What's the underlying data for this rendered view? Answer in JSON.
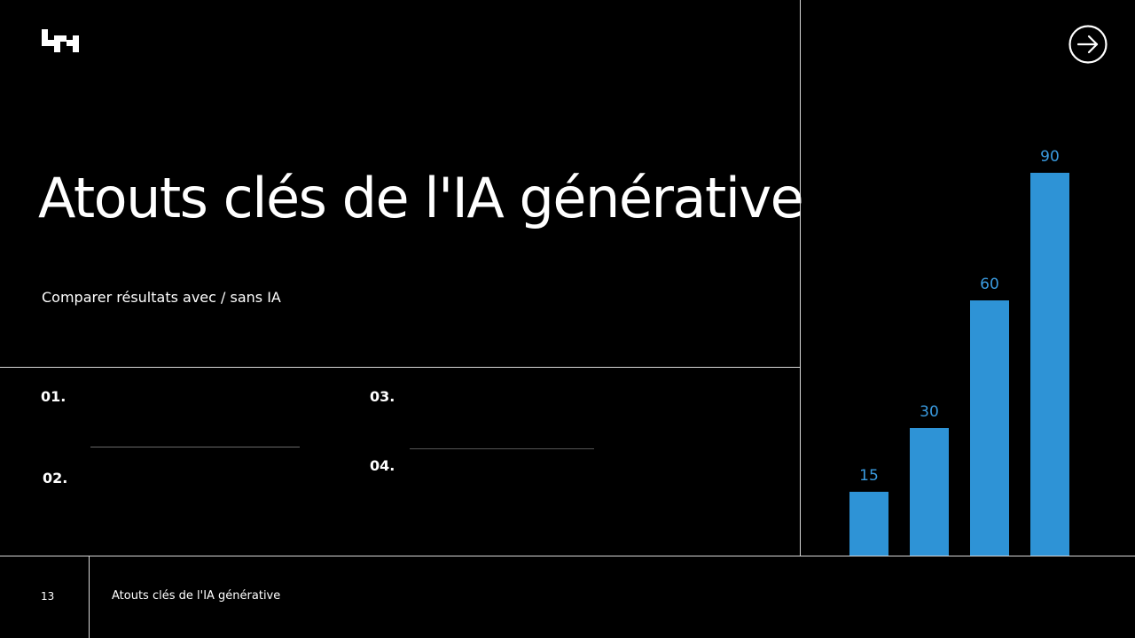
{
  "slide": {
    "title": "Atouts clés de l'IA générative",
    "subtitle": "Comparer résultats avec / sans IA"
  },
  "items": {
    "n1": "01.",
    "n2": "02.",
    "n3": "03.",
    "n4": "04."
  },
  "footer": {
    "page_number": "13",
    "title": "Atouts clés de l'IA générative"
  },
  "icons": {
    "logo": "brand-logo-icon",
    "next": "arrow-right-circle-icon"
  },
  "colors": {
    "background": "#000000",
    "text": "#ffffff",
    "bar": "#2e93d6",
    "bar_label": "#3a9be0"
  },
  "chart_data": {
    "type": "bar",
    "values": [
      15,
      30,
      60,
      90
    ],
    "ylim": [
      0,
      100
    ],
    "grid": false,
    "legend": "none"
  }
}
